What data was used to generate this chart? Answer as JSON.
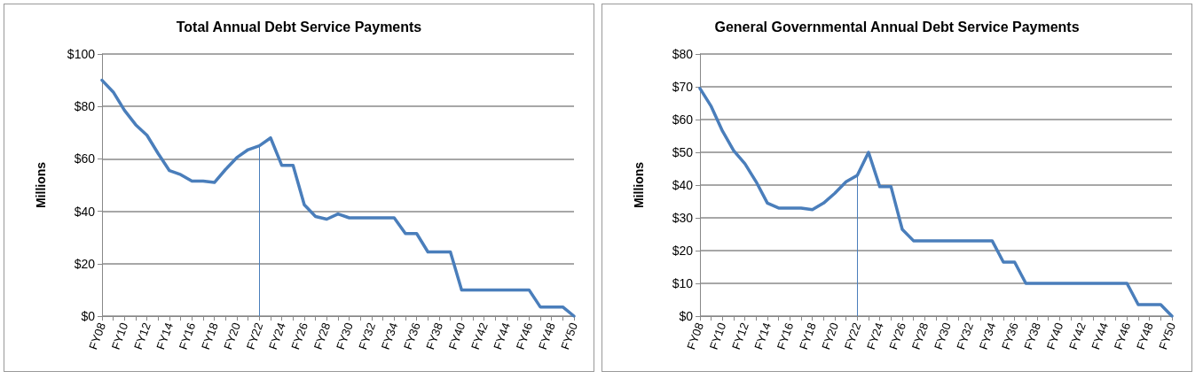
{
  "chart_data": [
    {
      "type": "line",
      "title": "Total Annual Debt Service Payments",
      "ylabel": "Millions",
      "categories": [
        "FY08",
        null,
        "FY10",
        null,
        "FY12",
        null,
        "FY14",
        null,
        "FY16",
        null,
        "FY18",
        null,
        "FY20",
        null,
        "FY22",
        null,
        "FY24",
        null,
        "FY26",
        null,
        "FY28",
        null,
        "FY30",
        null,
        "FY32",
        null,
        "FY34",
        null,
        "FY36",
        null,
        "FY38",
        null,
        "FY40",
        null,
        "FY42",
        null,
        "FY44",
        null,
        "FY46",
        null,
        "FY48",
        null,
        "FY50"
      ],
      "series": [
        {
          "color": "#4a7ebb",
          "values": [
            90,
            85.5,
            78.5,
            73,
            69,
            62,
            55.5,
            54,
            51.5,
            51.5,
            51,
            56,
            60.5,
            63.5,
            65,
            68,
            57.5,
            57.5,
            42.5,
            38,
            37,
            39,
            37.5,
            37.5,
            37.5,
            37.5,
            37.5,
            31.5,
            31.5,
            24.5,
            24.5,
            24.5,
            10,
            10,
            10,
            10,
            10,
            10,
            10,
            3.5,
            3.5,
            3.5,
            0
          ]
        }
      ],
      "ylim": [
        0,
        100
      ],
      "yticks": [
        {
          "value": 0,
          "label": "$0"
        },
        {
          "value": 20,
          "label": "$20"
        },
        {
          "value": 40,
          "label": "$40"
        },
        {
          "value": 60,
          "label": "$60"
        },
        {
          "value": 80,
          "label": "$80"
        },
        {
          "value": 100,
          "label": "$100"
        }
      ],
      "grid": "y",
      "marker": "none",
      "line_style": "solid",
      "ref_lines": [
        {
          "axis": "x",
          "value": "FY22",
          "color": "#4a7ebb"
        }
      ]
    },
    {
      "type": "line",
      "title": "General Governmental Annual Debt Service Payments",
      "ylabel": "Millions",
      "categories": [
        "FY08",
        null,
        "FY10",
        null,
        "FY12",
        null,
        "FY14",
        null,
        "FY16",
        null,
        "FY18",
        null,
        "FY20",
        null,
        "FY22",
        null,
        "FY24",
        null,
        "FY26",
        null,
        "FY28",
        null,
        "FY30",
        null,
        "FY32",
        null,
        "FY34",
        null,
        "FY36",
        null,
        "FY38",
        null,
        "FY40",
        null,
        "FY42",
        null,
        "FY44",
        null,
        "FY46",
        null,
        "FY48",
        null,
        "FY50"
      ],
      "series": [
        {
          "color": "#4a7ebb",
          "values": [
            69.5,
            64,
            56.5,
            50.5,
            46.5,
            41,
            34.5,
            33,
            33,
            33,
            32.5,
            34.5,
            37.5,
            41,
            43,
            50,
            39.5,
            39.5,
            26.5,
            23,
            23,
            23,
            23,
            23,
            23,
            23,
            23,
            16.5,
            16.5,
            10,
            10,
            10,
            10,
            10,
            10,
            10,
            10,
            10,
            10,
            3.5,
            3.5,
            3.5,
            0
          ]
        }
      ],
      "ylim": [
        0,
        80
      ],
      "yticks": [
        {
          "value": 0,
          "label": "$0"
        },
        {
          "value": 10,
          "label": "$10"
        },
        {
          "value": 20,
          "label": "$20"
        },
        {
          "value": 30,
          "label": "$30"
        },
        {
          "value": 40,
          "label": "$40"
        },
        {
          "value": 50,
          "label": "$50"
        },
        {
          "value": 60,
          "label": "$60"
        },
        {
          "value": 70,
          "label": "$70"
        },
        {
          "value": 80,
          "label": "$80"
        }
      ],
      "grid": "y",
      "marker": "none",
      "line_style": "solid",
      "ref_lines": [
        {
          "axis": "x",
          "value": "FY22",
          "color": "#4a7ebb"
        }
      ]
    }
  ]
}
